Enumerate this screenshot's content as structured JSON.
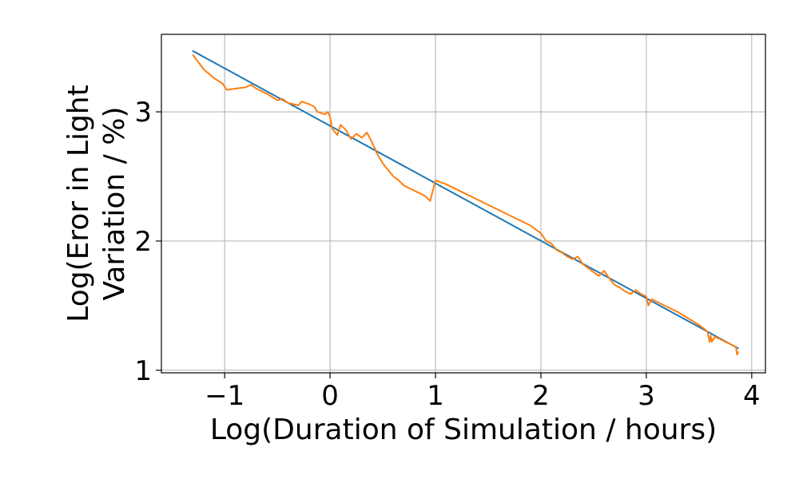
{
  "chart_data": {
    "type": "line",
    "xlabel": "Log(Duration of Simulation / hours)",
    "ylabel": [
      "Log(Eror in Light",
      "Variation / %)"
    ],
    "xlim": [
      -1.6,
      4.13
    ],
    "ylim": [
      0.98,
      3.6
    ],
    "grid": true,
    "xticks": [
      -1,
      0,
      1,
      2,
      3,
      4
    ],
    "xtick_labels": [
      "−1",
      "0",
      "1",
      "2",
      "3",
      "4"
    ],
    "yticks": [
      1,
      2,
      3
    ],
    "ytick_labels": [
      "1",
      "2",
      "3"
    ],
    "series": [
      {
        "color": "#1f77b4",
        "x": [
          -1.3,
          3.87
        ],
        "y": [
          3.47,
          1.17
        ]
      },
      {
        "color": "#ff7f0e",
        "x": [
          -1.3,
          -1.2,
          -1.1,
          -1.02,
          -0.98,
          -0.9,
          -0.8,
          -0.75,
          -0.7,
          -0.6,
          -0.5,
          -0.45,
          -0.4,
          -0.3,
          -0.27,
          -0.2,
          -0.15,
          -0.12,
          -0.05,
          -0.02,
          0.0,
          0.02,
          0.07,
          0.1,
          0.15,
          0.2,
          0.25,
          0.3,
          0.35,
          0.4,
          0.45,
          0.5,
          0.55,
          0.6,
          0.65,
          0.7,
          0.75,
          0.8,
          0.9,
          0.95,
          1.0,
          1.1,
          1.2,
          1.3,
          1.4,
          1.5,
          1.6,
          1.7,
          1.8,
          1.9,
          1.95,
          2.0,
          2.05,
          2.1,
          2.15,
          2.2,
          2.25,
          2.3,
          2.35,
          2.4,
          2.45,
          2.5,
          2.55,
          2.6,
          2.65,
          2.7,
          2.75,
          2.8,
          2.85,
          2.9,
          2.95,
          3.0,
          3.02,
          3.05,
          3.1,
          3.2,
          3.3,
          3.4,
          3.5,
          3.58,
          3.6,
          3.61,
          3.62,
          3.65,
          3.7,
          3.75,
          3.8,
          3.85,
          3.86,
          3.87
        ],
        "y": [
          3.44,
          3.33,
          3.26,
          3.22,
          3.17,
          3.18,
          3.19,
          3.21,
          3.18,
          3.14,
          3.09,
          3.1,
          3.07,
          3.05,
          3.08,
          3.06,
          3.04,
          3.0,
          2.98,
          3.0,
          2.96,
          2.87,
          2.82,
          2.9,
          2.86,
          2.79,
          2.83,
          2.8,
          2.84,
          2.76,
          2.67,
          2.6,
          2.55,
          2.5,
          2.47,
          2.43,
          2.41,
          2.39,
          2.35,
          2.31,
          2.47,
          2.44,
          2.4,
          2.36,
          2.32,
          2.28,
          2.24,
          2.2,
          2.16,
          2.12,
          2.09,
          2.06,
          2.0,
          1.98,
          1.93,
          1.91,
          1.88,
          1.86,
          1.88,
          1.82,
          1.79,
          1.76,
          1.73,
          1.77,
          1.71,
          1.66,
          1.64,
          1.61,
          1.59,
          1.62,
          1.59,
          1.57,
          1.5,
          1.55,
          1.53,
          1.49,
          1.45,
          1.4,
          1.35,
          1.3,
          1.22,
          1.27,
          1.22,
          1.26,
          1.24,
          1.22,
          1.2,
          1.18,
          1.12,
          1.14
        ]
      }
    ]
  }
}
